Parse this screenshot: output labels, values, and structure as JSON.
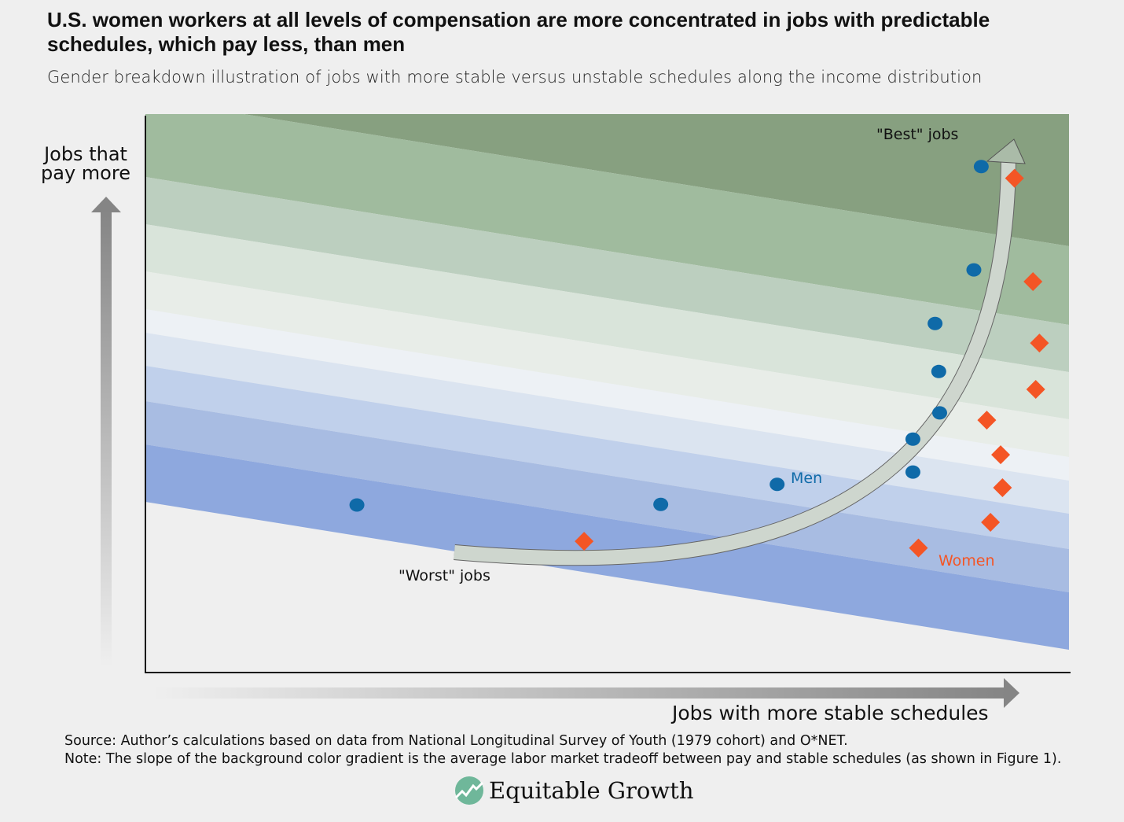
{
  "title": "U.S. women workers at all levels of compensation are more concentrated in jobs with predictable schedules, which pay less, than men",
  "subtitle": "Gender breakdown illustration of jobs with more stable versus unstable schedules along the income distribution",
  "chart_data": {
    "type": "scatter",
    "xlabel": "Jobs with more stable schedules",
    "ylabel_line1": "Jobs that",
    "ylabel_line2": "pay more",
    "xlim": [
      0,
      100
    ],
    "ylim": [
      0,
      100
    ],
    "grid": false,
    "series": [
      {
        "name": "Men",
        "color": "#0f6aa8",
        "marker": "circle",
        "points": [
          [
            22.9,
            30.0
          ],
          [
            55.8,
            30.1
          ],
          [
            68.4,
            33.7
          ],
          [
            83.1,
            35.9
          ],
          [
            83.1,
            41.8
          ],
          [
            86.0,
            46.5
          ],
          [
            85.9,
            53.9
          ],
          [
            85.5,
            62.5
          ],
          [
            89.7,
            72.1
          ],
          [
            90.5,
            90.6
          ]
        ]
      },
      {
        "name": "Women",
        "color": "#f45525",
        "marker": "diamond",
        "points": [
          [
            47.5,
            23.5
          ],
          [
            83.7,
            22.3
          ],
          [
            91.5,
            26.9
          ],
          [
            92.8,
            33.1
          ],
          [
            92.6,
            39.0
          ],
          [
            91.1,
            45.2
          ],
          [
            96.4,
            50.7
          ],
          [
            96.8,
            59.0
          ],
          [
            96.1,
            70.0
          ],
          [
            94.1,
            88.5
          ]
        ]
      }
    ],
    "annotations": {
      "best": "\"Best\" jobs",
      "worst": "\"Worst\" jobs"
    },
    "band_colors": [
      "#87a080",
      "#a0bb9e",
      "#bccfbf",
      "#d9e4da",
      "#e8ede8",
      "#edf1f5",
      "#dbe4f0",
      "#c0d0eb",
      "#a8bce2",
      "#8ea8de"
    ]
  },
  "source": "Source: Author’s calculations based on data from National Longitudinal Survey of Youth (1979 cohort) and O*NET.",
  "note": "Note: The slope of the background color gradient is the average labor market tradeoff between pay and stable schedules (as shown in Figure 1).",
  "logo": "Equitable Growth"
}
